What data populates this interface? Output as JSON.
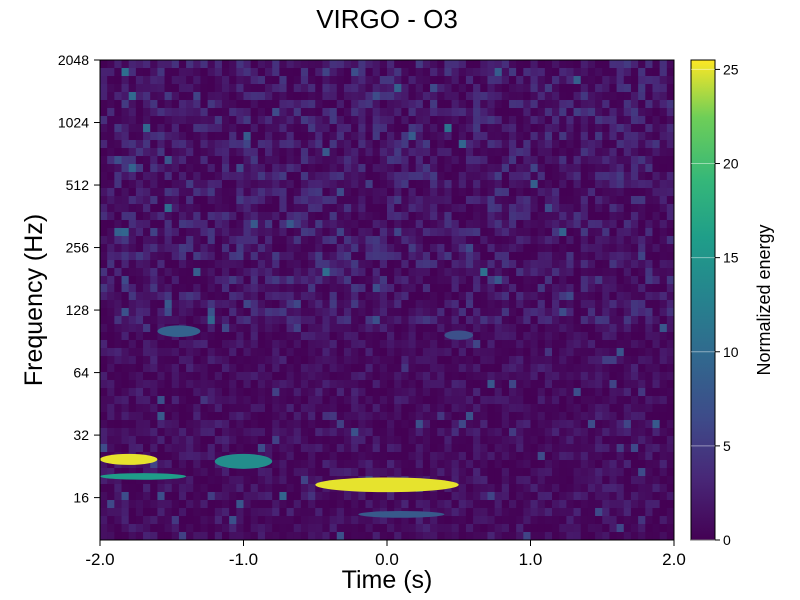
{
  "chart_data": {
    "type": "heatmap",
    "title": "VIRGO - O3",
    "xlabel": "Time (s)",
    "ylabel": "Frequency (Hz)",
    "xlim": [
      -2.0,
      2.0
    ],
    "ylim": [
      10,
      2048
    ],
    "yscale": "log2",
    "x_ticks": [
      {
        "value": -2.0,
        "label": "-2.0"
      },
      {
        "value": -1.0,
        "label": "-1.0"
      },
      {
        "value": 0.0,
        "label": "0.0"
      },
      {
        "value": 1.0,
        "label": "1.0"
      },
      {
        "value": 2.0,
        "label": "2.0"
      }
    ],
    "y_ticks": [
      {
        "value": 16,
        "label": "16"
      },
      {
        "value": 32,
        "label": "32"
      },
      {
        "value": 64,
        "label": "64"
      },
      {
        "value": 128,
        "label": "128"
      },
      {
        "value": 256,
        "label": "256"
      },
      {
        "value": 512,
        "label": "512"
      },
      {
        "value": 1024,
        "label": "1024"
      },
      {
        "value": 2048,
        "label": "2048"
      }
    ],
    "colorbar": {
      "label": "Normalized energy",
      "range": [
        0,
        25.5
      ],
      "colormap": "viridis",
      "ticks": [
        {
          "value": 0,
          "label": "0"
        },
        {
          "value": 5,
          "label": "5"
        },
        {
          "value": 10,
          "label": "10"
        },
        {
          "value": 15,
          "label": "15"
        },
        {
          "value": 20,
          "label": "20"
        },
        {
          "value": 25,
          "label": "25"
        }
      ]
    },
    "features": [
      {
        "t_start": -2.0,
        "t_end": -1.6,
        "f_low": 23,
        "f_high": 26,
        "energy": 25
      },
      {
        "t_start": -2.0,
        "t_end": -1.4,
        "f_low": 19.5,
        "f_high": 21,
        "energy": 16
      },
      {
        "t_start": -1.2,
        "t_end": -0.8,
        "f_low": 22,
        "f_high": 26,
        "energy": 14
      },
      {
        "t_start": -0.5,
        "t_end": 0.5,
        "f_low": 17,
        "f_high": 20,
        "energy": 25
      },
      {
        "t_start": -1.6,
        "t_end": -1.3,
        "f_low": 95,
        "f_high": 108,
        "energy": 9
      },
      {
        "t_start": 0.4,
        "t_end": 0.6,
        "f_low": 92,
        "f_high": 102,
        "energy": 7
      },
      {
        "t_start": -0.2,
        "t_end": 0.4,
        "f_low": 12.8,
        "f_high": 13.8,
        "energy": 8
      }
    ]
  }
}
